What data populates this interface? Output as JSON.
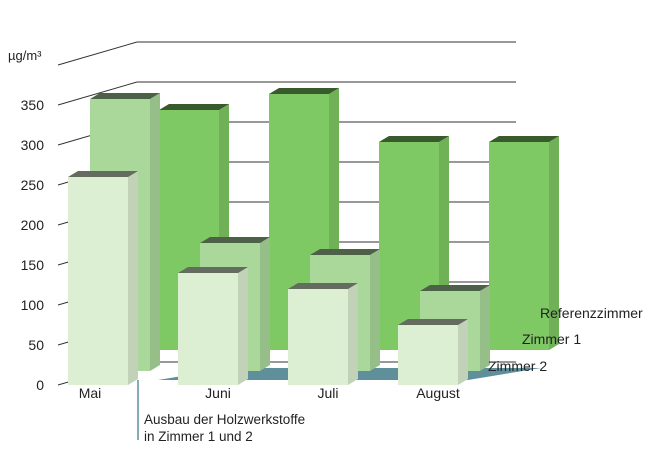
{
  "chart_data": {
    "type": "bar",
    "subtype": "3d-grouped",
    "ylabel": "µg/m³",
    "yticks": [
      0,
      50,
      100,
      150,
      200,
      250,
      300,
      350
    ],
    "ylim": [
      0,
      400
    ],
    "categories": [
      "Mai",
      "Juni",
      "Juli",
      "August"
    ],
    "series": [
      {
        "name": "Zimmer 2",
        "values": [
          260,
          140,
          120,
          75
        ]
      },
      {
        "name": "Zimmer 1",
        "values": [
          340,
          160,
          145,
          100
        ]
      },
      {
        "name": "Referenzzimmer",
        "values": [
          300,
          320,
          260,
          260
        ]
      }
    ],
    "annotation": [
      "Ausbau der Holzwerkstoffe",
      "in Zimmer 1 und 2"
    ],
    "colors": {
      "Zimmer 2": "#dcefd2",
      "Zimmer 1": "#a9d89a",
      "Referenzzimmer": "#7fc964",
      "floor": "#5f8f9a"
    },
    "grid": true
  }
}
